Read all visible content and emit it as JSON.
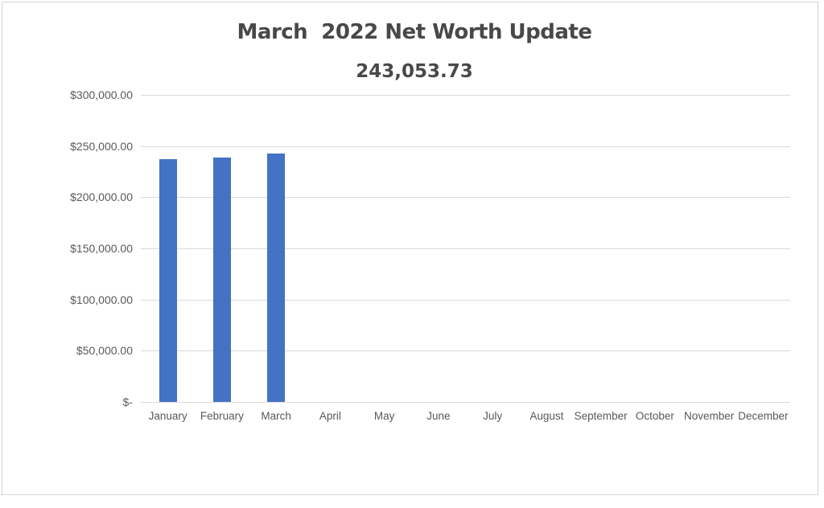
{
  "chart_data": {
    "type": "bar",
    "title": "March  2022 Net Worth Update",
    "subtitle": "243,053.73",
    "categories": [
      "January",
      "February",
      "March",
      "April",
      "May",
      "June",
      "July",
      "August",
      "September",
      "October",
      "November",
      "December"
    ],
    "values": [
      237200,
      238700,
      243053.73,
      0,
      0,
      0,
      0,
      0,
      0,
      0,
      0,
      0
    ],
    "y_ticks": [
      {
        "label": "$300,000.00",
        "value": 300000
      },
      {
        "label": "$250,000.00",
        "value": 250000
      },
      {
        "label": "$200,000.00",
        "value": 200000
      },
      {
        "label": "$150,000.00",
        "value": 150000
      },
      {
        "label": "$100,000.00",
        "value": 100000
      },
      {
        "label": "$50,000.00",
        "value": 50000
      },
      {
        "label": "$-",
        "value": 0
      }
    ],
    "ylim": [
      0,
      300000
    ],
    "xlabel": "",
    "ylabel": "",
    "grid": "horizontal",
    "legend": "none",
    "colors": {
      "bar": "#4472C4",
      "gridline": "#D9D9D9",
      "title_text": "#484848",
      "axis_text": "#595959",
      "frame_border": "#D4D4D4"
    }
  }
}
